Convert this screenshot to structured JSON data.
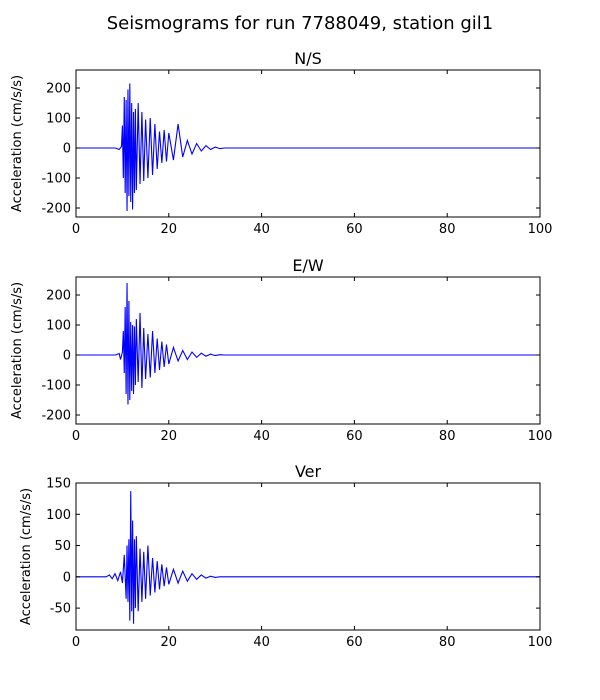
{
  "figure": {
    "suptitle": "Seismograms for run 7788049, station gil1"
  },
  "chart_data": [
    {
      "type": "line",
      "title": "N/S",
      "xlabel": "",
      "ylabel": "Acceleration (cm/s/s)",
      "xlim": [
        0,
        100
      ],
      "ylim": [
        -230,
        260
      ],
      "xticks": [
        0,
        20,
        40,
        60,
        80,
        100
      ],
      "yticks": [
        -200,
        -100,
        0,
        100,
        200
      ],
      "color": "#0000ff",
      "grid": false,
      "series": [
        {
          "x": [
            0,
            8.5,
            9.3,
            9.8,
            10.0,
            10.2,
            10.4,
            10.6,
            10.8,
            11.0,
            11.2,
            11.4,
            11.6,
            11.8,
            12.0,
            12.2,
            12.4,
            12.6,
            12.8,
            13.0,
            13.4,
            13.8,
            14.2,
            14.6,
            15.0,
            15.5,
            16.0,
            16.5,
            17.0,
            17.5,
            18.0,
            18.5,
            19.0,
            19.5,
            20.0,
            21.0,
            22.0,
            23.0,
            24.0,
            25.0,
            26.0,
            27.0,
            28.0,
            29.0,
            30.0,
            31.0,
            32.0,
            100
          ],
          "values": [
            0,
            0,
            -5,
            5,
            75,
            -100,
            170,
            -150,
            160,
            -210,
            195,
            -160,
            215,
            -180,
            150,
            -205,
            120,
            -150,
            130,
            -140,
            150,
            -120,
            120,
            -110,
            95,
            -100,
            100,
            -90,
            80,
            -70,
            55,
            -50,
            60,
            -45,
            50,
            -40,
            80,
            -30,
            25,
            -20,
            15,
            -10,
            8,
            -5,
            3,
            -2,
            0,
            0
          ]
        }
      ]
    },
    {
      "type": "line",
      "title": "E/W",
      "xlabel": "",
      "ylabel": "Acceleration (cm/s/s)",
      "xlim": [
        0,
        100
      ],
      "ylim": [
        -230,
        260
      ],
      "xticks": [
        0,
        20,
        40,
        60,
        80,
        100
      ],
      "yticks": [
        -200,
        -100,
        0,
        100,
        200
      ],
      "color": "#0000ff",
      "grid": false,
      "series": [
        {
          "x": [
            0,
            8.5,
            9.3,
            9.6,
            10.0,
            10.2,
            10.4,
            10.6,
            10.8,
            11.0,
            11.2,
            11.4,
            11.6,
            11.8,
            12.0,
            12.2,
            12.4,
            12.6,
            12.8,
            13.0,
            13.4,
            13.8,
            14.2,
            14.6,
            15.0,
            15.5,
            16.0,
            16.5,
            17.0,
            17.5,
            18.0,
            18.5,
            19.0,
            19.5,
            20.0,
            21.0,
            22.0,
            23.0,
            24.0,
            25.0,
            26.0,
            27.0,
            28.0,
            29.0,
            30.0,
            31.0,
            32.0,
            100
          ],
          "values": [
            0,
            0,
            5,
            -15,
            10,
            80,
            -60,
            160,
            -130,
            240,
            -165,
            180,
            -150,
            110,
            -120,
            100,
            -130,
            95,
            -100,
            120,
            -90,
            140,
            -110,
            90,
            -80,
            70,
            -75,
            80,
            -60,
            55,
            -50,
            45,
            -40,
            35,
            -30,
            25,
            -20,
            15,
            -15,
            10,
            -8,
            6,
            -4,
            3,
            -2,
            1,
            0,
            0
          ]
        }
      ]
    },
    {
      "type": "line",
      "title": "Ver",
      "xlabel": "",
      "ylabel": "Acceleration (cm/s/s)",
      "xlim": [
        0,
        100
      ],
      "ylim": [
        -85,
        150
      ],
      "xticks": [
        0,
        20,
        40,
        60,
        80,
        100
      ],
      "yticks": [
        -50,
        0,
        50,
        100,
        150
      ],
      "color": "#0000ff",
      "grid": false,
      "series": [
        {
          "x": [
            0,
            6.5,
            7.2,
            7.8,
            8.4,
            9.0,
            9.6,
            10.0,
            10.4,
            10.8,
            11.0,
            11.2,
            11.4,
            11.6,
            11.8,
            12.0,
            12.2,
            12.4,
            12.6,
            12.8,
            13.0,
            13.4,
            13.8,
            14.2,
            14.6,
            15.0,
            15.5,
            16.0,
            16.5,
            17.0,
            17.5,
            18.0,
            18.5,
            19.0,
            19.5,
            20.0,
            21.0,
            22.0,
            23.0,
            24.0,
            25.0,
            26.0,
            27.0,
            28.0,
            29.0,
            30.0,
            31.0,
            100
          ],
          "values": [
            0,
            0,
            3,
            -3,
            5,
            -6,
            8,
            -10,
            35,
            -35,
            50,
            -40,
            60,
            -70,
            137,
            -55,
            90,
            -75,
            60,
            -50,
            65,
            -55,
            45,
            -40,
            40,
            -35,
            50,
            -30,
            30,
            -25,
            25,
            -20,
            20,
            -15,
            15,
            -12,
            12,
            -10,
            9,
            -7,
            5,
            -4,
            3,
            -2,
            1,
            -1,
            0,
            0
          ]
        }
      ]
    }
  ]
}
